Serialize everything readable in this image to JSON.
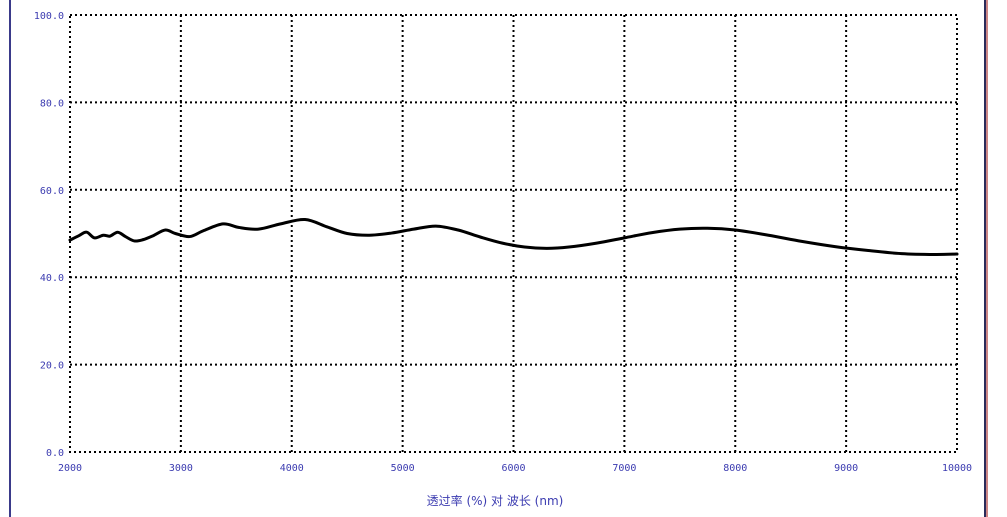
{
  "chart_data": {
    "type": "line",
    "xlabel": "透过率 (%) 对 波长 (nm)",
    "ylabel": "",
    "xlim": [
      2000,
      10000
    ],
    "ylim": [
      0,
      100
    ],
    "x_ticks": [
      "2000",
      "3000",
      "4000",
      "5000",
      "6000",
      "7000",
      "8000",
      "9000",
      "10000"
    ],
    "y_ticks": [
      "0.0",
      "20.0",
      "40.0",
      "60.0",
      "80.0",
      "100.0"
    ],
    "grid": true,
    "colors": {
      "line": "#000000",
      "grid": "#000000",
      "tick_text": "#3b3bb0",
      "edge": "#3a3a8a"
    },
    "series": [
      {
        "x": [
          2000,
          2080,
          2150,
          2220,
          2300,
          2360,
          2430,
          2500,
          2580,
          2660,
          2750,
          2860,
          2950,
          3080,
          3200,
          3380,
          3520,
          3700,
          3900,
          4120,
          4320,
          4500,
          4700,
          4900,
          5100,
          5300,
          5500,
          5700,
          5900,
          6100,
          6300,
          6500,
          6750,
          7000,
          7250,
          7500,
          7750,
          8000,
          8300,
          8600,
          8900,
          9200,
          9500,
          9800,
          10000
        ],
        "y": [
          48.5,
          49.5,
          50.3,
          49.0,
          49.6,
          49.4,
          50.3,
          49.3,
          48.3,
          48.6,
          49.5,
          50.8,
          50.0,
          49.3,
          50.6,
          52.2,
          51.4,
          51.0,
          52.2,
          53.2,
          51.5,
          50.0,
          49.6,
          50.1,
          51.0,
          51.7,
          50.8,
          49.2,
          47.8,
          46.9,
          46.6,
          46.9,
          47.8,
          49.0,
          50.2,
          51.0,
          51.2,
          50.8,
          49.6,
          48.2,
          47.0,
          46.1,
          45.4,
          45.2,
          45.3
        ]
      }
    ]
  }
}
